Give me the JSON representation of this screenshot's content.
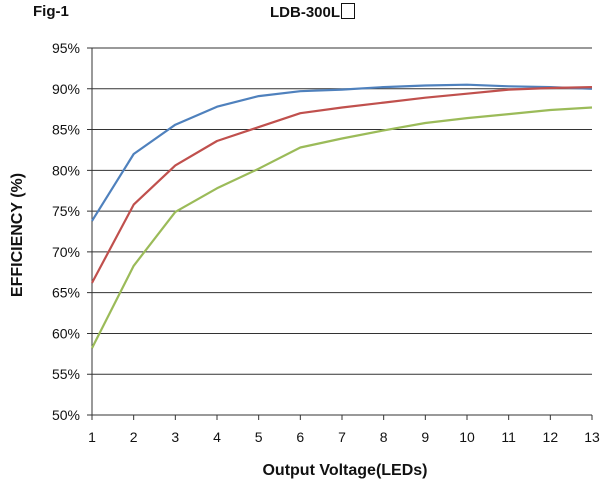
{
  "header": {
    "fig_label": "Fig-1",
    "title": "LDB-300L"
  },
  "chart_data": {
    "type": "line",
    "title": "LDB-300L",
    "xlabel": "Output Voltage(LEDs)",
    "ylabel": "EFFICIENCY (%)",
    "x": [
      1,
      2,
      3,
      4,
      5,
      6,
      7,
      8,
      9,
      10,
      11,
      12,
      13
    ],
    "xlim": [
      1,
      13
    ],
    "ylim": [
      50,
      95
    ],
    "y_ticks": [
      "50%",
      "55%",
      "60%",
      "65%",
      "70%",
      "75%",
      "80%",
      "85%",
      "90%",
      "95%"
    ],
    "x_ticks": [
      "1",
      "2",
      "3",
      "4",
      "5",
      "6",
      "7",
      "8",
      "9",
      "10",
      "11",
      "12",
      "13"
    ],
    "grid": "horizontal",
    "series": [
      {
        "color": "#4f81bd",
        "values": [
          73.8,
          82.0,
          85.6,
          87.8,
          89.1,
          89.7,
          89.9,
          90.2,
          90.4,
          90.5,
          90.3,
          90.2,
          90.0
        ]
      },
      {
        "color": "#c0504d",
        "values": [
          66.2,
          75.8,
          80.6,
          83.6,
          85.3,
          87.0,
          87.7,
          88.3,
          88.9,
          89.4,
          89.9,
          90.1,
          90.2
        ]
      },
      {
        "color": "#9bbb59",
        "values": [
          58.2,
          68.3,
          74.9,
          77.8,
          80.2,
          82.8,
          83.9,
          84.9,
          85.8,
          86.4,
          86.9,
          87.4,
          87.7
        ]
      }
    ]
  }
}
